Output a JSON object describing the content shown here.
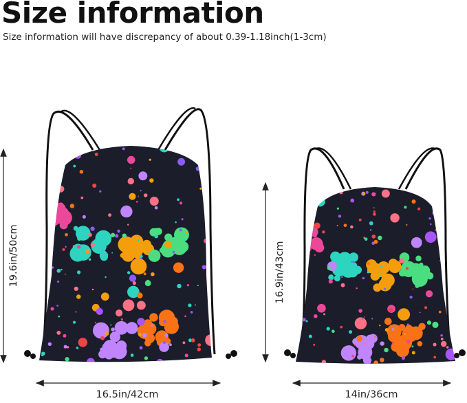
{
  "header": {
    "title": "Size information",
    "subtitle": "Size information will have discrepancy of about 0.39-1.18inch(1-3cm)"
  },
  "products": [
    {
      "size": "large",
      "height_label": "19.6in/50cm",
      "width_label": "16.5in/42cm"
    },
    {
      "size": "small",
      "height_label": "16.9in/43cm",
      "width_label": "14in/36cm"
    }
  ],
  "colors": {
    "bag_background": "#1b1d2b",
    "cord": "#111111",
    "splatter_palette": [
      "#8b5cf6",
      "#a855f7",
      "#c084fc",
      "#2dd4bf",
      "#f59e0b",
      "#4ade80",
      "#ec4899",
      "#ef4444",
      "#f97316",
      "#fb7185"
    ]
  }
}
